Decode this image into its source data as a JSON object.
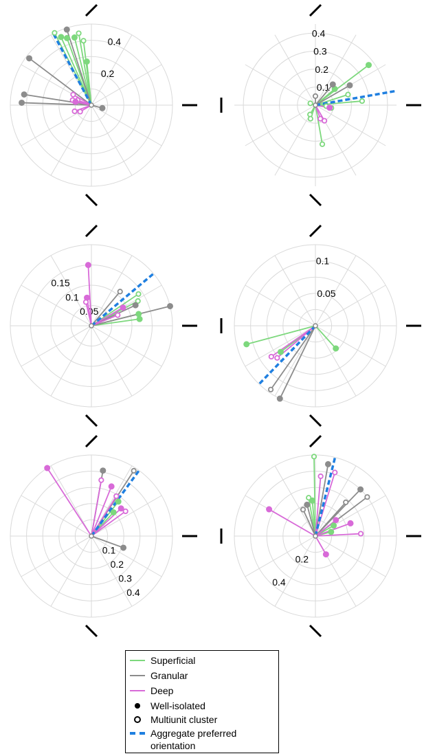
{
  "colors": {
    "superficial": "#7dd87d",
    "granular": "#8c8c8c",
    "deep": "#d86ad8",
    "aggregate": "#1f7fe0",
    "grid": "#d9d9d9"
  },
  "legend": {
    "superficial": "Superficial",
    "granular": "Granular",
    "deep": "Deep",
    "well_isolated": "Well-isolated",
    "multiunit": "Multiunit cluster",
    "aggregate_line1": "Aggregate preferred",
    "aggregate_line2": "orientation"
  },
  "chart_data": [
    {
      "type": "polar",
      "rmax": 0.5,
      "rings": [
        0.1,
        0.2,
        0.3,
        0.4,
        0.5
      ],
      "tick_labels": [
        {
          "text": "0.2",
          "r": 0.2,
          "angle": 78
        },
        {
          "text": "0.4",
          "r": 0.4,
          "angle": 78
        }
      ],
      "aggregate_angle": 118,
      "units": [
        {
          "layer": "superficial",
          "angle": 117,
          "r": 0.5,
          "marker": "open"
        },
        {
          "layer": "superficial",
          "angle": 114,
          "r": 0.46,
          "marker": "filled"
        },
        {
          "layer": "superficial",
          "angle": 110,
          "r": 0.44,
          "marker": "filled"
        },
        {
          "layer": "superficial",
          "angle": 104,
          "r": 0.43,
          "marker": "filled"
        },
        {
          "layer": "superficial",
          "angle": 100,
          "r": 0.45,
          "marker": "open"
        },
        {
          "layer": "superficial",
          "angle": 97,
          "r": 0.4,
          "marker": "open"
        },
        {
          "layer": "superficial",
          "angle": 96,
          "r": 0.27,
          "marker": "filled"
        },
        {
          "layer": "granular",
          "angle": 108,
          "r": 0.49,
          "marker": "filled"
        },
        {
          "layer": "granular",
          "angle": 143,
          "r": 0.48,
          "marker": "filled"
        },
        {
          "layer": "granular",
          "angle": 171,
          "r": 0.42,
          "marker": "filled"
        },
        {
          "layer": "granular",
          "angle": 178,
          "r": 0.43,
          "marker": "filled"
        },
        {
          "layer": "granular",
          "angle": 345,
          "r": 0.07,
          "marker": "filled"
        },
        {
          "layer": "deep",
          "angle": 150,
          "r": 0.13,
          "marker": "open"
        },
        {
          "layer": "deep",
          "angle": 160,
          "r": 0.09,
          "marker": "open"
        },
        {
          "layer": "deep",
          "angle": 165,
          "r": 0.12,
          "marker": "open"
        },
        {
          "layer": "deep",
          "angle": 168,
          "r": 0.1,
          "marker": "filled"
        },
        {
          "layer": "deep",
          "angle": 200,
          "r": 0.11,
          "marker": "open"
        },
        {
          "layer": "deep",
          "angle": 210,
          "r": 0.08,
          "marker": "open"
        }
      ]
    },
    {
      "type": "polar",
      "rmax": 0.45,
      "rings": [
        0.1,
        0.2,
        0.3,
        0.4
      ],
      "tick_labels": [
        {
          "text": "0.1",
          "r": 0.1,
          "angle": 95
        },
        {
          "text": "0.2",
          "r": 0.2,
          "angle": 95
        },
        {
          "text": "0.3",
          "r": 0.3,
          "angle": 95
        },
        {
          "text": "0.4",
          "r": 0.4,
          "angle": 95
        }
      ],
      "aggregate_angle": 10,
      "units": [
        {
          "layer": "superficial",
          "angle": 37,
          "r": 0.37,
          "marker": "filled"
        },
        {
          "layer": "superficial",
          "angle": 40,
          "r": 0.14,
          "marker": "filled"
        },
        {
          "layer": "superficial",
          "angle": 18,
          "r": 0.19,
          "marker": "open"
        },
        {
          "layer": "superficial",
          "angle": 5,
          "r": 0.26,
          "marker": "open"
        },
        {
          "layer": "superficial",
          "angle": 350,
          "r": 0.09,
          "marker": "open"
        },
        {
          "layer": "superficial",
          "angle": 355,
          "r": 0.06,
          "marker": "open"
        },
        {
          "layer": "superficial",
          "angle": 160,
          "r": 0.03,
          "marker": "open"
        },
        {
          "layer": "superficial",
          "angle": 240,
          "r": 0.06,
          "marker": "open"
        },
        {
          "layer": "superficial",
          "angle": 250,
          "r": 0.08,
          "marker": "open"
        },
        {
          "layer": "superficial",
          "angle": 280,
          "r": 0.22,
          "marker": "open"
        },
        {
          "layer": "granular",
          "angle": 90,
          "r": 0.05,
          "marker": "open"
        },
        {
          "layer": "granular",
          "angle": 50,
          "r": 0.15,
          "marker": "filled"
        },
        {
          "layer": "granular",
          "angle": 30,
          "r": 0.22,
          "marker": "filled"
        },
        {
          "layer": "deep",
          "angle": 350,
          "r": 0.08,
          "marker": "filled"
        },
        {
          "layer": "deep",
          "angle": 300,
          "r": 0.1,
          "marker": "open"
        },
        {
          "layer": "deep",
          "angle": 290,
          "r": 0.08,
          "marker": "open"
        }
      ]
    },
    {
      "type": "polar",
      "rmax": 0.2,
      "rings": [
        0.05,
        0.1,
        0.15,
        0.2
      ],
      "tick_labels": [
        {
          "text": "0.05",
          "r": 0.05,
          "angle": 135
        },
        {
          "text": "0.1",
          "r": 0.1,
          "angle": 135
        },
        {
          "text": "0.15",
          "r": 0.15,
          "angle": 135
        }
      ],
      "aggregate_angle": 40,
      "units": [
        {
          "layer": "superficial",
          "angle": 34,
          "r": 0.14,
          "marker": "open"
        },
        {
          "layer": "superficial",
          "angle": 28,
          "r": 0.13,
          "marker": "open"
        },
        {
          "layer": "superficial",
          "angle": 14,
          "r": 0.12,
          "marker": "filled"
        },
        {
          "layer": "superficial",
          "angle": 8,
          "r": 0.12,
          "marker": "filled"
        },
        {
          "layer": "granular",
          "angle": 50,
          "r": 0.11,
          "marker": "open"
        },
        {
          "layer": "granular",
          "angle": 25,
          "r": 0.12,
          "marker": "filled"
        },
        {
          "layer": "granular",
          "angle": 14,
          "r": 0.2,
          "marker": "filled"
        },
        {
          "layer": "deep",
          "angle": 93,
          "r": 0.15,
          "marker": "filled"
        },
        {
          "layer": "deep",
          "angle": 99,
          "r": 0.07,
          "marker": "filled"
        },
        {
          "layer": "deep",
          "angle": 103,
          "r": 0.06,
          "marker": "open"
        },
        {
          "layer": "deep",
          "angle": 30,
          "r": 0.09,
          "marker": "filled"
        },
        {
          "layer": "deep",
          "angle": 22,
          "r": 0.07,
          "marker": "open"
        }
      ]
    },
    {
      "type": "polar",
      "rmax": 0.125,
      "rings": [
        0.025,
        0.05,
        0.075,
        0.1,
        0.125
      ],
      "tick_labels": [
        {
          "text": "0.05",
          "r": 0.05,
          "angle": 92
        },
        {
          "text": "0.1",
          "r": 0.1,
          "angle": 92
        }
      ],
      "aggregate_angle": 226,
      "units": [
        {
          "layer": "superficial",
          "angle": 195,
          "r": 0.11,
          "marker": "filled"
        },
        {
          "layer": "superficial",
          "angle": 217,
          "r": 0.067,
          "marker": "filled"
        },
        {
          "layer": "superficial",
          "angle": 312,
          "r": 0.047,
          "marker": "filled"
        },
        {
          "layer": "granular",
          "angle": 235,
          "r": 0.12,
          "marker": "open"
        },
        {
          "layer": "granular",
          "angle": 244,
          "r": 0.125,
          "marker": "filled"
        },
        {
          "layer": "deep",
          "angle": 215,
          "r": 0.083,
          "marker": "open"
        },
        {
          "layer": "deep",
          "angle": 220,
          "r": 0.077,
          "marker": "open"
        }
      ]
    },
    {
      "type": "polar",
      "rmax": 0.5,
      "rings": [
        0.1,
        0.2,
        0.3,
        0.4,
        0.5
      ],
      "tick_labels": [
        {
          "text": "0.1",
          "r": 0.1,
          "angle": 300
        },
        {
          "text": "0.2",
          "r": 0.2,
          "angle": 300
        },
        {
          "text": "0.3",
          "r": 0.3,
          "angle": 300
        },
        {
          "text": "0.4",
          "r": 0.4,
          "angle": 300
        }
      ],
      "aggregate_angle": 54,
      "units": [
        {
          "layer": "superficial",
          "angle": 52,
          "r": 0.27,
          "marker": "filled"
        },
        {
          "layer": "superficial",
          "angle": 47,
          "r": 0.2,
          "marker": "filled"
        },
        {
          "layer": "granular",
          "angle": 80,
          "r": 0.41,
          "marker": "filled"
        },
        {
          "layer": "granular",
          "angle": 57,
          "r": 0.48,
          "marker": "open"
        },
        {
          "layer": "granular",
          "angle": 340,
          "r": 0.21,
          "marker": "filled"
        },
        {
          "layer": "deep",
          "angle": 123,
          "r": 0.5,
          "marker": "filled"
        },
        {
          "layer": "deep",
          "angle": 80,
          "r": 0.35,
          "marker": "open"
        },
        {
          "layer": "deep",
          "angle": 68,
          "r": 0.33,
          "marker": "filled"
        },
        {
          "layer": "deep",
          "angle": 58,
          "r": 0.29,
          "marker": "open"
        },
        {
          "layer": "deep",
          "angle": 43,
          "r": 0.25,
          "marker": "filled"
        },
        {
          "layer": "deep",
          "angle": 36,
          "r": 0.26,
          "marker": "open"
        }
      ]
    },
    {
      "type": "polar",
      "rmax": 0.5,
      "rings": [
        0.1,
        0.2,
        0.3,
        0.4,
        0.5
      ],
      "tick_labels": [
        {
          "text": "0.2",
          "r": 0.2,
          "angle": 225
        },
        {
          "text": "0.4",
          "r": 0.4,
          "angle": 225
        }
      ],
      "aggregate_angle": 76,
      "units": [
        {
          "layer": "superficial",
          "angle": 91,
          "r": 0.49,
          "marker": "open"
        },
        {
          "layer": "superficial",
          "angle": 100,
          "r": 0.24,
          "marker": "open"
        },
        {
          "layer": "superficial",
          "angle": 95,
          "r": 0.22,
          "marker": "filled"
        },
        {
          "layer": "superficial",
          "angle": 30,
          "r": 0.13,
          "marker": "filled"
        },
        {
          "layer": "superficial",
          "angle": 15,
          "r": 0.1,
          "marker": "filled"
        },
        {
          "layer": "granular",
          "angle": 80,
          "r": 0.45,
          "marker": "filled"
        },
        {
          "layer": "granular",
          "angle": 46,
          "r": 0.4,
          "marker": "filled"
        },
        {
          "layer": "granular",
          "angle": 37,
          "r": 0.4,
          "marker": "open"
        },
        {
          "layer": "granular",
          "angle": 105,
          "r": 0.2,
          "marker": "filled"
        },
        {
          "layer": "granular",
          "angle": 115,
          "r": 0.18,
          "marker": "open"
        },
        {
          "layer": "granular",
          "angle": 48,
          "r": 0.28,
          "marker": "open"
        },
        {
          "layer": "deep",
          "angle": 73,
          "r": 0.41,
          "marker": "open"
        },
        {
          "layer": "deep",
          "angle": 85,
          "r": 0.37,
          "marker": "open"
        },
        {
          "layer": "deep",
          "angle": 150,
          "r": 0.33,
          "marker": "filled"
        },
        {
          "layer": "deep",
          "angle": 38,
          "r": 0.16,
          "marker": "filled"
        },
        {
          "layer": "deep",
          "angle": 20,
          "r": 0.23,
          "marker": "filled"
        },
        {
          "layer": "deep",
          "angle": 3,
          "r": 0.28,
          "marker": "open"
        },
        {
          "layer": "deep",
          "angle": 300,
          "r": 0.13,
          "marker": "filled"
        }
      ]
    }
  ]
}
